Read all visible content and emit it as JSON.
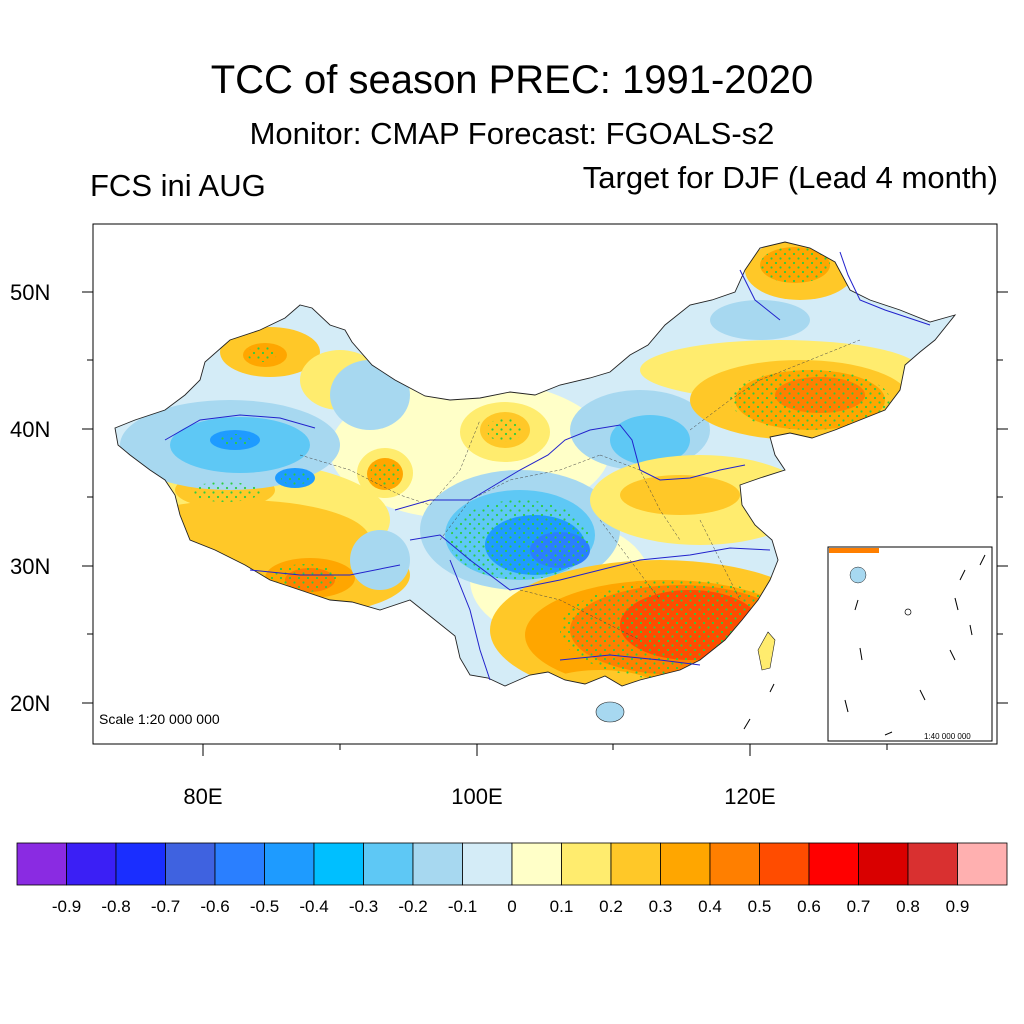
{
  "title": "TCC of season PREC: 1991-2020",
  "subtitle": "Monitor: CMAP   Forecast: FGOALS-s2",
  "left_label": "FCS ini AUG",
  "right_label": "Target for DJF (Lead 4 month)",
  "map": {
    "lat_labels": [
      "50N",
      "40N",
      "30N",
      "20N"
    ],
    "lon_labels": [
      "80E",
      "100E",
      "120E"
    ],
    "scale_label": "Scale 1:20 000 000",
    "inset_scale_label": "1:40 000 000",
    "stipple_color": "#2ecc40",
    "river_color": "#2222cc",
    "regions": [
      {
        "name": "northeast",
        "level": 0.4
      },
      {
        "name": "south-china",
        "level": 0.6
      },
      {
        "name": "sichuan-basin",
        "level": -0.5
      },
      {
        "name": "tarim",
        "level": -0.4
      },
      {
        "name": "southern-tibet",
        "level": 0.4
      }
    ]
  },
  "colorbar": {
    "colors": [
      "#8a2be2",
      "#3b1ff5",
      "#1a2eff",
      "#3f62e0",
      "#2a7fff",
      "#1e9bff",
      "#00bfff",
      "#5ec8f5",
      "#a7d8f0",
      "#d4ecf7",
      "#ffffc8",
      "#ffec6e",
      "#ffc828",
      "#ffa600",
      "#ff7f00",
      "#ff4c00",
      "#ff0000",
      "#d90000",
      "#d93030",
      "#ffb0b0"
    ],
    "labels": [
      "-0.9",
      "-0.8",
      "-0.7",
      "-0.6",
      "-0.5",
      "-0.4",
      "-0.3",
      "-0.2",
      "-0.1",
      "0",
      "0.1",
      "0.2",
      "0.3",
      "0.4",
      "0.5",
      "0.6",
      "0.7",
      "0.8",
      "0.9"
    ]
  }
}
